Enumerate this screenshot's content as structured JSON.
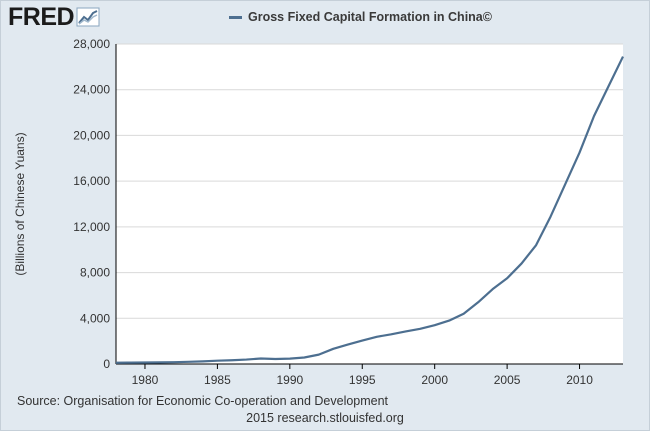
{
  "brand": {
    "logo_text": "FRED",
    "logo_icon": "line-chart-icon"
  },
  "colors": {
    "background": "#e1e9f0",
    "plot_background": "#ffffff",
    "series_line": "#4d6f90",
    "axis": "#000000",
    "grid": "#d9d9d9"
  },
  "chart_data": {
    "type": "line",
    "title": "",
    "xlabel": "",
    "ylabel": "(Billions of Chinese Yuans)",
    "grid": true,
    "legend": "top-center",
    "xlim": [
      1978,
      2013
    ],
    "ylim": [
      0,
      28000
    ],
    "x_ticks": [
      1980,
      1985,
      1990,
      1995,
      2000,
      2005,
      2010
    ],
    "y_ticks": [
      0,
      4000,
      8000,
      12000,
      16000,
      20000,
      24000,
      28000
    ],
    "y_tick_labels": [
      "0",
      "4,000",
      "8,000",
      "12,000",
      "16,000",
      "20,000",
      "24,000",
      "28,000"
    ],
    "series": [
      {
        "name": "Gross Fixed Capital Formation in China©",
        "x": [
          1978,
          1979,
          1980,
          1981,
          1982,
          1983,
          1984,
          1985,
          1986,
          1987,
          1988,
          1989,
          1990,
          1991,
          1992,
          1993,
          1994,
          1995,
          1996,
          1997,
          1998,
          1999,
          2000,
          2001,
          2002,
          2003,
          2004,
          2005,
          2006,
          2007,
          2008,
          2009,
          2010,
          2011,
          2012,
          2013
        ],
        "values": [
          110,
          120,
          130,
          140,
          160,
          190,
          230,
          290,
          330,
          390,
          480,
          440,
          470,
          570,
          820,
          1330,
          1700,
          2050,
          2380,
          2600,
          2850,
          3080,
          3400,
          3800,
          4400,
          5400,
          6550,
          7500,
          8800,
          10400,
          12900,
          15700,
          18500,
          21700,
          24300,
          26900
        ]
      }
    ]
  },
  "footer": {
    "source": "Source: Organisation for Economic Co-operation and Development",
    "credit": "2015 research.stlouisfed.org"
  }
}
